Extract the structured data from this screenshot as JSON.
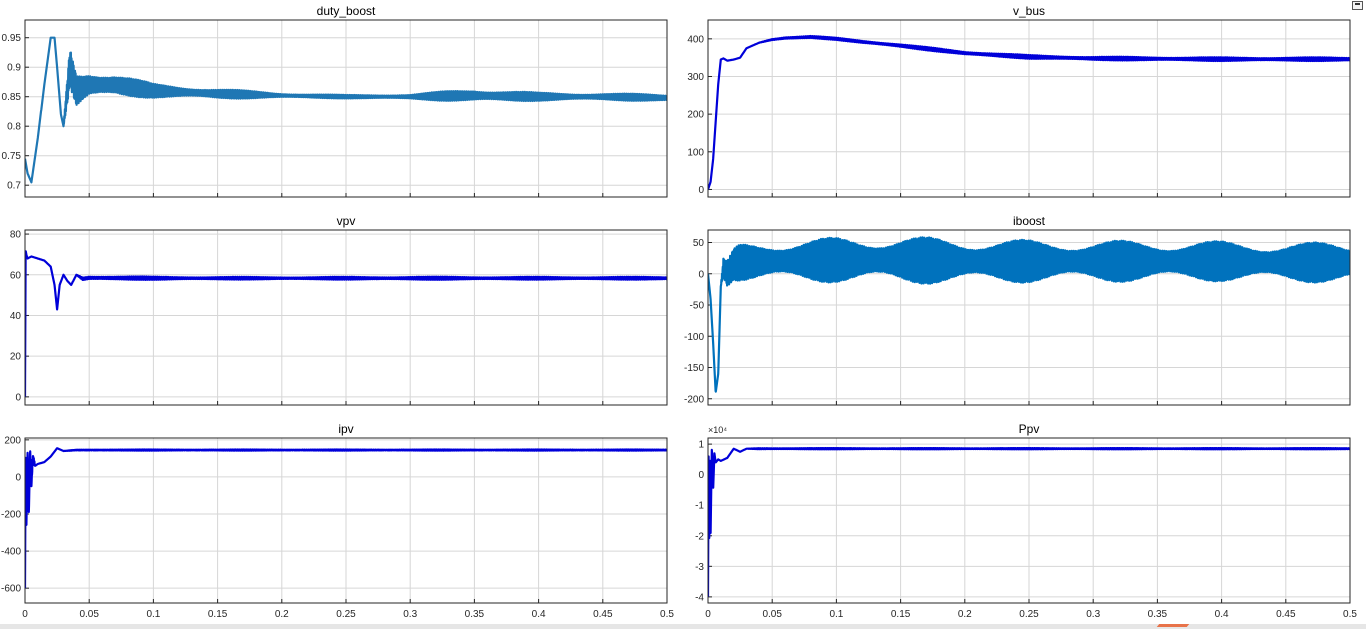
{
  "window": {
    "undock_icon": "undock-icon"
  },
  "chart_data": [
    {
      "type": "line",
      "title": "duty_boost",
      "color": "#1f77b4",
      "xlim": [
        0,
        0.5
      ],
      "ylim": [
        0.68,
        0.98
      ],
      "xticks": [
        "0",
        "0.05",
        "0.1",
        "0.15",
        "0.2",
        "0.25",
        "0.3",
        "0.35",
        "0.4",
        "0.45",
        "0.5"
      ],
      "yticks": [
        0.7,
        0.75,
        0.8,
        0.85,
        0.9,
        0.95
      ],
      "yticklabels": [
        "0.7",
        "0.75",
        "0.8",
        "0.85",
        "0.9",
        "0.95"
      ],
      "grid": true,
      "show_xticklabels": false,
      "exponent": "",
      "series": [
        {
          "x": [
            0,
            0.002,
            0.005,
            0.01,
            0.015,
            0.02,
            0.023,
            0.025,
            0.028,
            0.03,
            0.035,
            0.04,
            0.05,
            0.07,
            0.1,
            0.15,
            0.2,
            0.25,
            0.3,
            0.35,
            0.4,
            0.45,
            0.5
          ],
          "y": [
            0.745,
            0.72,
            0.705,
            0.78,
            0.87,
            0.95,
            0.95,
            0.9,
            0.82,
            0.8,
            0.9,
            0.86,
            0.87,
            0.87,
            0.86,
            0.855,
            0.852,
            0.85,
            0.85,
            0.852,
            0.85,
            0.85,
            0.848
          ],
          "amp": [
            0,
            0,
            0,
            0,
            0,
            0,
            0,
            0,
            0,
            0,
            0.04,
            0.035,
            0.028,
            0.02,
            0.012,
            0.009,
            0.004,
            0.003,
            0.004,
            0.012,
            0.007,
            0.006,
            0.006
          ]
        }
      ]
    },
    {
      "type": "line",
      "title": "v_bus",
      "color": "#0000d9",
      "xlim": [
        0,
        0.5
      ],
      "ylim": [
        -20,
        450
      ],
      "xticks": [
        "0",
        "0.05",
        "0.1",
        "0.15",
        "0.2",
        "0.25",
        "0.3",
        "0.35",
        "0.4",
        "0.45",
        "0.5"
      ],
      "yticks": [
        0,
        100,
        200,
        300,
        400
      ],
      "yticklabels": [
        "0",
        "100",
        "200",
        "300",
        "400"
      ],
      "grid": true,
      "show_xticklabels": false,
      "exponent": "",
      "series": [
        {
          "x": [
            0,
            0.002,
            0.004,
            0.006,
            0.008,
            0.01,
            0.012,
            0.015,
            0.02,
            0.025,
            0.03,
            0.04,
            0.05,
            0.06,
            0.08,
            0.1,
            0.12,
            0.15,
            0.2,
            0.25,
            0.3,
            0.35,
            0.4,
            0.45,
            0.5
          ],
          "y": [
            0,
            20,
            80,
            180,
            280,
            345,
            348,
            342,
            345,
            350,
            375,
            390,
            398,
            402,
            405,
            400,
            392,
            382,
            362,
            352,
            348,
            347,
            346,
            346,
            346
          ],
          "amp": [
            0,
            0,
            0,
            0,
            0,
            0,
            0,
            0,
            0,
            0,
            0,
            0,
            2,
            3,
            3,
            3,
            4,
            4,
            5,
            5,
            5,
            5,
            5,
            5,
            5
          ]
        }
      ]
    },
    {
      "type": "line",
      "title": "vpv",
      "color": "#0000d9",
      "xlim": [
        0,
        0.5
      ],
      "ylim": [
        -4,
        82
      ],
      "xticks": [
        "0",
        "0.05",
        "0.1",
        "0.15",
        "0.2",
        "0.25",
        "0.3",
        "0.35",
        "0.4",
        "0.45",
        "0.5"
      ],
      "yticks": [
        0,
        20,
        40,
        60,
        80
      ],
      "yticklabels": [
        "0",
        "20",
        "40",
        "60",
        "80"
      ],
      "grid": true,
      "show_xticklabels": false,
      "exponent": "",
      "series": [
        {
          "x": [
            0,
            0.0005,
            0.001,
            0.002,
            0.005,
            0.01,
            0.015,
            0.02,
            0.023,
            0.025,
            0.027,
            0.03,
            0.033,
            0.036,
            0.04,
            0.045,
            0.05,
            0.1,
            0.2,
            0.3,
            0.4,
            0.5
          ],
          "y": [
            0,
            72,
            70,
            68,
            69,
            68,
            67,
            64,
            55,
            43,
            55,
            60,
            57,
            55,
            60,
            58,
            58.5,
            58.3,
            58.3,
            58.3,
            58.3,
            58.3
          ],
          "amp": [
            0,
            0,
            0,
            0,
            0,
            0,
            0,
            0,
            0,
            0,
            0,
            0,
            0,
            0,
            0,
            1,
            1,
            0.8,
            0.6,
            0.8,
            0.7,
            0.7
          ]
        }
      ]
    },
    {
      "type": "line",
      "title": "iboost",
      "color": "#0072bd",
      "xlim": [
        0,
        0.5
      ],
      "ylim": [
        -210,
        70
      ],
      "xticks": [
        "0",
        "0.05",
        "0.1",
        "0.15",
        "0.2",
        "0.25",
        "0.3",
        "0.35",
        "0.4",
        "0.45",
        "0.5"
      ],
      "yticks": [
        -200,
        -150,
        -100,
        -50,
        0,
        50
      ],
      "yticklabels": [
        "-200",
        "-150",
        "-100",
        "-50",
        "0",
        "50"
      ],
      "grid": true,
      "show_xticklabels": false,
      "exponent": "",
      "series": [
        {
          "x": [
            0,
            0.002,
            0.004,
            0.006,
            0.008,
            0.01,
            0.012,
            0.015,
            0.02,
            0.025,
            0.05,
            0.1,
            0.15,
            0.2,
            0.25,
            0.3,
            0.35,
            0.4,
            0.45,
            0.5
          ],
          "y": [
            0,
            -40,
            -110,
            -190,
            -160,
            -20,
            10,
            0,
            15,
            18,
            20,
            22,
            22,
            20,
            20,
            20,
            20,
            20,
            18,
            18
          ],
          "amp": [
            0,
            0,
            0,
            0,
            0,
            0,
            15,
            20,
            25,
            30,
            33,
            36,
            38,
            36,
            34,
            33,
            33,
            32,
            32,
            32
          ]
        }
      ]
    },
    {
      "type": "line",
      "title": "ipv",
      "color": "#0000d9",
      "xlim": [
        0,
        0.5
      ],
      "ylim": [
        -680,
        210
      ],
      "xticks": [
        "0",
        "0.05",
        "0.1",
        "0.15",
        "0.2",
        "0.25",
        "0.3",
        "0.35",
        "0.4",
        "0.45",
        "0.5"
      ],
      "yticks": [
        -600,
        -400,
        -200,
        0,
        200
      ],
      "yticklabels": [
        "-600",
        "-400",
        "-200",
        "0",
        "200"
      ],
      "grid": true,
      "show_xticklabels": true,
      "exponent": "",
      "series": [
        {
          "x": [
            0,
            0.0005,
            0.001,
            0.002,
            0.003,
            0.004,
            0.005,
            0.006,
            0.008,
            0.01,
            0.015,
            0.02,
            0.025,
            0.03,
            0.04,
            0.05,
            0.1,
            0.2,
            0.3,
            0.4,
            0.5
          ],
          "y": [
            -600,
            150,
            -300,
            140,
            -200,
            150,
            -50,
            100,
            60,
            70,
            80,
            110,
            155,
            140,
            145,
            145,
            145,
            145,
            145,
            145,
            145
          ],
          "amp": [
            0,
            0,
            0,
            0,
            0,
            0,
            0,
            40,
            0,
            0,
            0,
            0,
            0,
            0,
            2,
            3,
            3,
            3,
            3,
            3,
            3
          ]
        }
      ]
    },
    {
      "type": "line",
      "title": "Ppv",
      "color": "#0000d9",
      "xlim": [
        0,
        0.5
      ],
      "ylim": [
        -4.2,
        1.2
      ],
      "xticks": [
        "0",
        "0.05",
        "0.1",
        "0.15",
        "0.2",
        "0.25",
        "0.3",
        "0.35",
        "0.4",
        "0.45",
        "0.5"
      ],
      "yticks": [
        -4,
        -3,
        -2,
        -1,
        0,
        1
      ],
      "yticklabels": [
        "-4",
        "-3",
        "-2",
        "-1",
        "0",
        "1"
      ],
      "grid": true,
      "show_xticklabels": true,
      "exponent": "×10⁴",
      "series": [
        {
          "x": [
            0,
            0.0005,
            0.001,
            0.0015,
            0.002,
            0.003,
            0.004,
            0.005,
            0.006,
            0.008,
            0.01,
            0.015,
            0.02,
            0.025,
            0.03,
            0.04,
            0.1,
            0.2,
            0.3,
            0.4,
            0.5
          ],
          "y": [
            -4,
            0.9,
            -2.5,
            0.8,
            -2,
            0.9,
            -0.5,
            0.7,
            0.4,
            0.5,
            0.45,
            0.55,
            0.85,
            0.75,
            0.85,
            0.85,
            0.85,
            0.85,
            0.85,
            0.85,
            0.85
          ],
          "amp": [
            0,
            0,
            0,
            0,
            0,
            0,
            0,
            0,
            0,
            0,
            0,
            0,
            0,
            0,
            0,
            0.02,
            0.02,
            0.02,
            0.02,
            0.02,
            0.02
          ]
        }
      ]
    }
  ]
}
